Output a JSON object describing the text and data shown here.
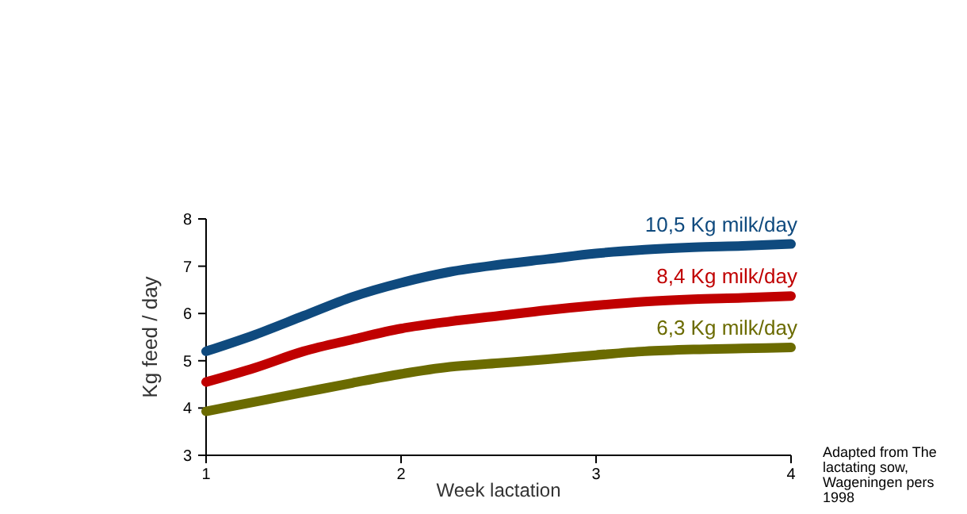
{
  "chart_data": {
    "type": "line",
    "xlabel": "Week lactation",
    "ylabel": "Kg feed / day",
    "x": [
      1,
      1.25,
      1.5,
      1.75,
      2,
      2.25,
      2.5,
      2.75,
      3,
      3.25,
      3.5,
      3.75,
      4
    ],
    "xlim": [
      1,
      4
    ],
    "xticks": [
      1,
      2,
      3,
      4
    ],
    "ylim": [
      3,
      8
    ],
    "yticks": [
      3,
      4,
      5,
      6,
      7,
      8
    ],
    "grid": false,
    "legend": false,
    "marker": "none",
    "line_style": "solid",
    "series": [
      {
        "name": "10,5 Kg milk/day",
        "color": "#0f4a7e",
        "values": [
          5.2,
          5.55,
          5.95,
          6.35,
          6.65,
          6.88,
          7.03,
          7.15,
          7.27,
          7.35,
          7.4,
          7.43,
          7.47
        ]
      },
      {
        "name": "8,4 Kg milk/day",
        "color": "#c00000",
        "values": [
          4.55,
          4.85,
          5.2,
          5.45,
          5.68,
          5.83,
          5.95,
          6.07,
          6.17,
          6.25,
          6.3,
          6.33,
          6.37
        ]
      },
      {
        "name": "6,3 Kg milk/day",
        "color": "#6b6b00",
        "values": [
          3.93,
          4.13,
          4.33,
          4.53,
          4.72,
          4.87,
          4.95,
          5.03,
          5.12,
          5.2,
          5.24,
          5.26,
          5.28
        ]
      }
    ],
    "annotations": [
      "Adapted from The lactating sow, Wageningen pers 1998"
    ]
  }
}
